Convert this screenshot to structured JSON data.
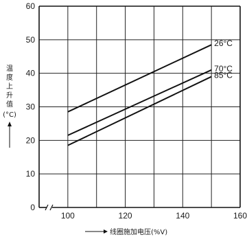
{
  "chart_data": {
    "type": "line",
    "title": "",
    "xlabel": "线圈施加电压(%V)",
    "ylabel": "温度上升值(°C)",
    "xlim": [
      90,
      160
    ],
    "ylim": [
      0,
      60
    ],
    "x_ticks": [
      100,
      120,
      140,
      160
    ],
    "y_ticks": [
      0,
      10,
      20,
      30,
      40,
      50,
      60
    ],
    "x_axis_break": true,
    "grid": true,
    "series": [
      {
        "name": "26°C",
        "x": [
          100,
          150
        ],
        "y": [
          28.5,
          48.5
        ]
      },
      {
        "name": "70°C",
        "x": [
          100,
          150
        ],
        "y": [
          21.5,
          41
        ]
      },
      {
        "name": "85°C",
        "x": [
          100,
          150
        ],
        "y": [
          18.5,
          39
        ]
      }
    ]
  }
}
